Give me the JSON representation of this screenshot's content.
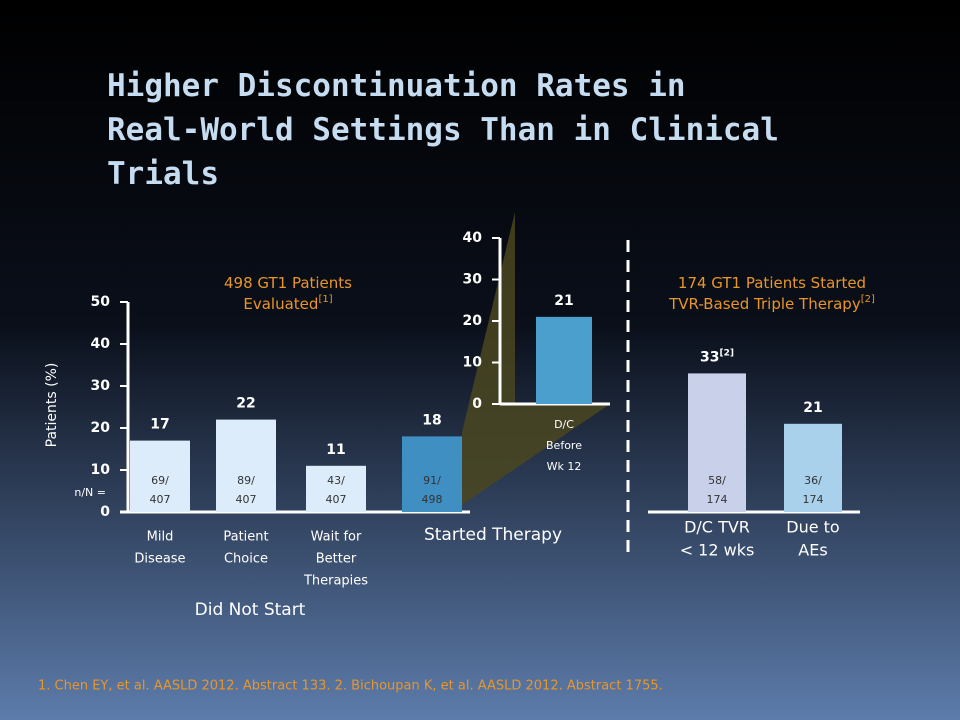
{
  "title_lines": [
    "Higher Discontinuation Rates in",
    "Real-World Settings Than in Clinical",
    "Trials"
  ],
  "footnote": "1. Chen EY, et al. AASLD 2012. Abstract 133. 2. Bichoupan K, et al. AASLD 2012. Abstract 1755.",
  "chart_data": [
    {
      "type": "bar",
      "subtitle_lines": [
        "498 GT1 Patients",
        "Evaluated"
      ],
      "subtitle_ref": "[1]",
      "y_label": "Patients (%)",
      "ylim": [
        0,
        50
      ],
      "yticks": [
        0,
        10,
        20,
        30,
        40,
        50
      ],
      "categories": [
        [
          "Mild",
          "Disease"
        ],
        [
          "Patient",
          "Choice"
        ],
        [
          "Wait for",
          "Better",
          "Therapies"
        ],
        [
          "Started Therapy"
        ]
      ],
      "values": [
        17,
        22,
        11,
        18
      ],
      "colors": [
        "#dcecfb",
        "#dcecfb",
        "#dcecfb",
        "#3f8fc2"
      ],
      "n_label": "n/N =",
      "n_labels": [
        "69/",
        "89/",
        "43/",
        "91/"
      ],
      "N_labels": [
        "407",
        "407",
        "407",
        "498"
      ],
      "group_label": "Did Not Start"
    },
    {
      "type": "bar",
      "ylim": [
        0,
        40
      ],
      "yticks": [
        0,
        10,
        20,
        30,
        40
      ],
      "categories": [
        [
          "D/C",
          "Before",
          "Wk 12"
        ]
      ],
      "values": [
        21
      ],
      "colors": [
        "#4a9fcd"
      ]
    },
    {
      "type": "bar",
      "subtitle_lines": [
        "174 GT1 Patients Started",
        "TVR-Based Triple Therapy"
      ],
      "subtitle_ref": "[2]",
      "categories": [
        [
          "D/C TVR",
          "< 12 wks"
        ],
        [
          "Due to",
          "AEs"
        ]
      ],
      "values": [
        33,
        21
      ],
      "value_refs": [
        "[2]",
        null
      ],
      "colors": [
        "#c9d0ea",
        "#a9d1ec"
      ],
      "n_labels": [
        "58/",
        "36/"
      ],
      "N_labels": [
        "174",
        "174"
      ]
    }
  ]
}
